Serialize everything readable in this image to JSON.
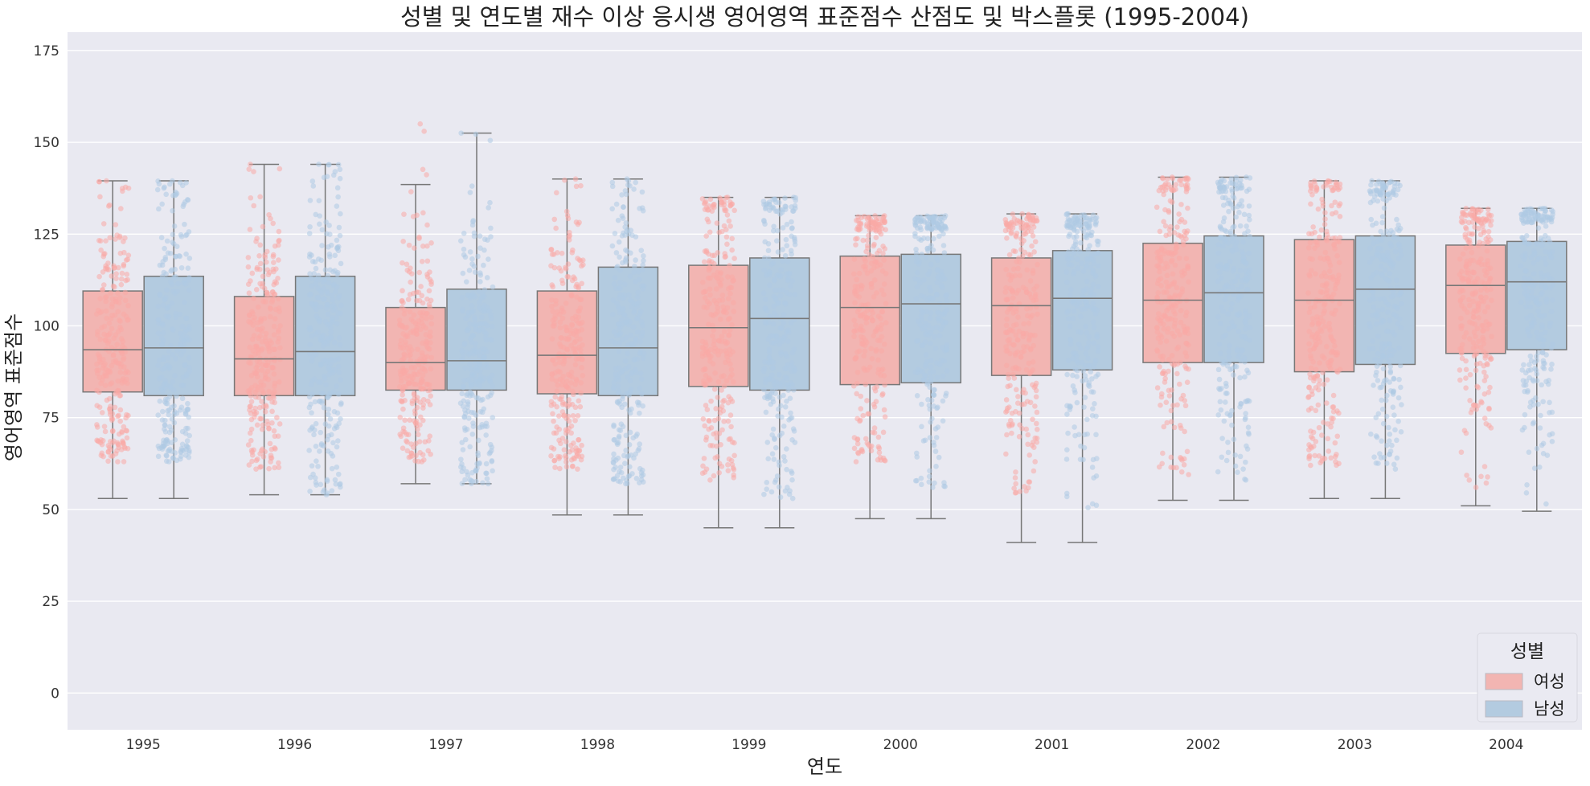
{
  "chart_data": {
    "type": "box",
    "title": "성별 및 연도별 재수 이상 응시생 영어영역 표준점수 산점도 및 박스플롯 (1995-2004)",
    "xlabel": "연도",
    "ylabel": "영어영역 표준점수",
    "categories": [
      "1995",
      "1996",
      "1997",
      "1998",
      "1999",
      "2000",
      "2001",
      "2002",
      "2003",
      "2004"
    ],
    "ylim": [
      -10,
      180
    ],
    "yticks": [
      0,
      25,
      50,
      75,
      100,
      125,
      150,
      175
    ],
    "grid": true,
    "legend": {
      "title": "성별",
      "placement": "bottom-right"
    },
    "series": [
      {
        "name": "여성",
        "color": "#f9aaa6",
        "box_color": "#f2b5b2",
        "boxes": [
          {
            "whisker_low": 53,
            "q1": 82,
            "median": 93.5,
            "q3": 109.5,
            "whisker_high": 139.5,
            "point_min": 63,
            "point_max": 139.5
          },
          {
            "whisker_low": 54,
            "q1": 81,
            "median": 91,
            "q3": 108,
            "whisker_high": 144,
            "point_min": 61,
            "point_max": 144
          },
          {
            "whisker_low": 57,
            "q1": 82.5,
            "median": 90,
            "q3": 105,
            "whisker_high": 138.5,
            "point_min": 63,
            "point_max": 155
          },
          {
            "whisker_low": 48.5,
            "q1": 81.5,
            "median": 92,
            "q3": 109.5,
            "whisker_high": 140,
            "point_min": 61,
            "point_max": 140
          },
          {
            "whisker_low": 45,
            "q1": 83.5,
            "median": 99.5,
            "q3": 116.5,
            "whisker_high": 135,
            "point_min": 58,
            "point_max": 135
          },
          {
            "whisker_low": 47.5,
            "q1": 84,
            "median": 105,
            "q3": 119,
            "whisker_high": 130,
            "point_min": 63,
            "point_max": 130
          },
          {
            "whisker_low": 41,
            "q1": 86.5,
            "median": 105.5,
            "q3": 118.5,
            "whisker_high": 130.5,
            "point_min": 54.5,
            "point_max": 130.5
          },
          {
            "whisker_low": 52.5,
            "q1": 90,
            "median": 107,
            "q3": 122.5,
            "whisker_high": 140.5,
            "point_min": 59.5,
            "point_max": 140.5
          },
          {
            "whisker_low": 53,
            "q1": 87.5,
            "median": 107,
            "q3": 123.5,
            "whisker_high": 139.5,
            "point_min": 62,
            "point_max": 139.5
          },
          {
            "whisker_low": 51,
            "q1": 92.5,
            "median": 111,
            "q3": 122,
            "whisker_high": 132,
            "point_min": 56,
            "point_max": 132
          }
        ]
      },
      {
        "name": "남성",
        "color": "#aecbe3",
        "box_color": "#b3cbe0",
        "boxes": [
          {
            "whisker_low": 53,
            "q1": 81,
            "median": 94,
            "q3": 113.5,
            "whisker_high": 139.5,
            "point_min": 63,
            "point_max": 139.5
          },
          {
            "whisker_low": 54,
            "q1": 81,
            "median": 93,
            "q3": 113.5,
            "whisker_high": 144,
            "point_min": 54,
            "point_max": 144
          },
          {
            "whisker_low": 57,
            "q1": 82.5,
            "median": 90.5,
            "q3": 110,
            "whisker_high": 152.5,
            "point_min": 57,
            "point_max": 152.5
          },
          {
            "whisker_low": 48.5,
            "q1": 81,
            "median": 94,
            "q3": 116,
            "whisker_high": 140,
            "point_min": 57,
            "point_max": 140
          },
          {
            "whisker_low": 45,
            "q1": 82.5,
            "median": 102,
            "q3": 118.5,
            "whisker_high": 135,
            "point_min": 53,
            "point_max": 135
          },
          {
            "whisker_low": 47.5,
            "q1": 84.5,
            "median": 106,
            "q3": 119.5,
            "whisker_high": 130,
            "point_min": 56,
            "point_max": 130
          },
          {
            "whisker_low": 41,
            "q1": 88,
            "median": 107.5,
            "q3": 120.5,
            "whisker_high": 130.5,
            "point_min": 50.5,
            "point_max": 130.5
          },
          {
            "whisker_low": 52.5,
            "q1": 90,
            "median": 109,
            "q3": 124.5,
            "whisker_high": 140.5,
            "point_min": 58,
            "point_max": 140.5
          },
          {
            "whisker_low": 53,
            "q1": 89.5,
            "median": 110,
            "q3": 124.5,
            "whisker_high": 139.5,
            "point_min": 61,
            "point_max": 139.5
          },
          {
            "whisker_low": 49.5,
            "q1": 93.5,
            "median": 112,
            "q3": 123,
            "whisker_high": 132,
            "point_min": 51.5,
            "point_max": 132
          }
        ]
      }
    ]
  }
}
